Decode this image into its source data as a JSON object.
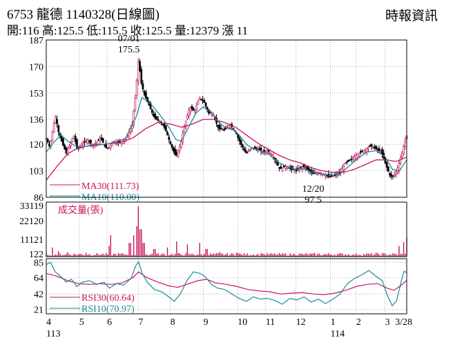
{
  "header": {
    "title": "6753  龍德 1140328(日線圖)",
    "quote": "開:116 高:125.5 低:115.5 收:125.5 量:12379 漲 11",
    "source": "時報資訊"
  },
  "colors": {
    "up": "#c8145a",
    "down": "#000000",
    "ma30": "#c8145a",
    "ma10": "#1a8a9a",
    "rsi30": "#c8145a",
    "rsi10": "#1a8a9a",
    "volume": "#c8145a",
    "grid": "#9a9a9a"
  },
  "chart_data": [
    {
      "type": "candlestick",
      "yticks": [
        187,
        170,
        153,
        136,
        120,
        103,
        86
      ],
      "ylim": [
        86,
        187
      ],
      "xticks": [
        {
          "label": "4",
          "sub": "113",
          "pos": 0.0
        },
        {
          "label": "5",
          "sub": "",
          "pos": 0.0914
        },
        {
          "label": "6",
          "sub": "",
          "pos": 0.1688
        },
        {
          "label": "7",
          "sub": "",
          "pos": 0.2554
        },
        {
          "label": "8",
          "sub": "",
          "pos": 0.344
        },
        {
          "label": "9",
          "sub": "",
          "pos": 0.4358
        },
        {
          "label": "10",
          "sub": "",
          "pos": 0.531
        },
        {
          "label": "11",
          "sub": "",
          "pos": 0.6086
        },
        {
          "label": "12",
          "sub": "",
          "pos": 0.6928
        },
        {
          "label": "1",
          "sub": "114",
          "pos": 0.7886
        },
        {
          "label": "2",
          "sub": "",
          "pos": 0.8598
        },
        {
          "label": "3",
          "sub": "",
          "pos": 0.94
        },
        {
          "label": "3/28",
          "sub": "",
          "pos": 1.0
        }
      ],
      "close_path": [
        [
          0.0,
          124
        ],
        [
          0.01,
          118
        ],
        [
          0.018,
          130
        ],
        [
          0.026,
          138
        ],
        [
          0.034,
          128
        ],
        [
          0.044,
          121
        ],
        [
          0.056,
          114
        ],
        [
          0.066,
          120
        ],
        [
          0.076,
          126
        ],
        [
          0.086,
          117
        ],
        [
          0.1,
          120
        ],
        [
          0.115,
          123
        ],
        [
          0.13,
          119
        ],
        [
          0.15,
          124
        ],
        [
          0.168,
          117
        ],
        [
          0.185,
          122
        ],
        [
          0.205,
          121
        ],
        [
          0.222,
          124
        ],
        [
          0.238,
          132
        ],
        [
          0.248,
          152
        ],
        [
          0.256,
          175
        ],
        [
          0.263,
          160
        ],
        [
          0.272,
          152
        ],
        [
          0.285,
          145
        ],
        [
          0.3,
          137
        ],
        [
          0.315,
          135
        ],
        [
          0.33,
          130
        ],
        [
          0.345,
          120
        ],
        [
          0.36,
          112
        ],
        [
          0.372,
          120
        ],
        [
          0.385,
          133
        ],
        [
          0.398,
          144
        ],
        [
          0.412,
          141
        ],
        [
          0.425,
          150
        ],
        [
          0.438,
          147
        ],
        [
          0.45,
          140
        ],
        [
          0.462,
          140
        ],
        [
          0.478,
          130
        ],
        [
          0.495,
          129
        ],
        [
          0.51,
          133
        ],
        [
          0.525,
          128
        ],
        [
          0.54,
          120
        ],
        [
          0.555,
          114
        ],
        [
          0.57,
          118
        ],
        [
          0.585,
          117
        ],
        [
          0.6,
          115
        ],
        [
          0.615,
          116
        ],
        [
          0.63,
          112
        ],
        [
          0.648,
          104
        ],
        [
          0.665,
          106
        ],
        [
          0.68,
          104
        ],
        [
          0.695,
          103
        ],
        [
          0.71,
          106
        ],
        [
          0.725,
          104
        ],
        [
          0.74,
          101
        ],
        [
          0.755,
          102
        ],
        [
          0.77,
          101
        ],
        [
          0.785,
          99
        ],
        [
          0.8,
          100
        ],
        [
          0.815,
          102
        ],
        [
          0.83,
          108
        ],
        [
          0.845,
          110
        ],
        [
          0.86,
          113
        ],
        [
          0.88,
          116
        ],
        [
          0.9,
          119
        ],
        [
          0.915,
          117
        ],
        [
          0.93,
          115
        ],
        [
          0.945,
          105
        ],
        [
          0.955,
          99
        ],
        [
          0.965,
          100
        ],
        [
          0.975,
          105
        ],
        [
          0.985,
          113
        ],
        [
          0.992,
          119
        ],
        [
          1.0,
          125.5
        ]
      ],
      "ma10_path": [
        [
          0.0,
          115
        ],
        [
          0.02,
          121
        ],
        [
          0.04,
          126
        ],
        [
          0.06,
          122
        ],
        [
          0.08,
          119
        ],
        [
          0.1,
          118
        ],
        [
          0.13,
          120
        ],
        [
          0.16,
          120
        ],
        [
          0.19,
          121
        ],
        [
          0.22,
          124
        ],
        [
          0.25,
          138
        ],
        [
          0.265,
          150
        ],
        [
          0.29,
          146
        ],
        [
          0.315,
          139
        ],
        [
          0.34,
          131
        ],
        [
          0.36,
          123
        ],
        [
          0.375,
          122
        ],
        [
          0.395,
          131
        ],
        [
          0.415,
          140
        ],
        [
          0.435,
          144
        ],
        [
          0.455,
          141
        ],
        [
          0.475,
          135
        ],
        [
          0.495,
          131
        ],
        [
          0.515,
          130
        ],
        [
          0.535,
          126
        ],
        [
          0.555,
          120
        ],
        [
          0.575,
          117
        ],
        [
          0.595,
          116
        ],
        [
          0.615,
          114
        ],
        [
          0.64,
          109
        ],
        [
          0.665,
          106
        ],
        [
          0.69,
          104
        ],
        [
          0.715,
          104
        ],
        [
          0.74,
          102
        ],
        [
          0.765,
          101
        ],
        [
          0.79,
          100
        ],
        [
          0.815,
          101
        ],
        [
          0.84,
          106
        ],
        [
          0.865,
          111
        ],
        [
          0.89,
          115
        ],
        [
          0.915,
          116
        ],
        [
          0.94,
          112
        ],
        [
          0.96,
          104
        ],
        [
          0.98,
          103
        ],
        [
          1.0,
          110
        ]
      ],
      "ma30_path": [
        [
          0.0,
          97
        ],
        [
          0.03,
          106
        ],
        [
          0.06,
          114
        ],
        [
          0.09,
          118
        ],
        [
          0.12,
          119
        ],
        [
          0.16,
          120
        ],
        [
          0.2,
          121
        ],
        [
          0.24,
          124
        ],
        [
          0.275,
          130
        ],
        [
          0.31,
          134
        ],
        [
          0.345,
          133
        ],
        [
          0.375,
          131
        ],
        [
          0.405,
          133
        ],
        [
          0.435,
          136
        ],
        [
          0.465,
          136
        ],
        [
          0.495,
          134
        ],
        [
          0.525,
          131
        ],
        [
          0.555,
          126
        ],
        [
          0.585,
          121
        ],
        [
          0.615,
          117
        ],
        [
          0.645,
          113
        ],
        [
          0.675,
          110
        ],
        [
          0.705,
          108
        ],
        [
          0.735,
          105
        ],
        [
          0.765,
          103
        ],
        [
          0.795,
          102
        ],
        [
          0.825,
          102
        ],
        [
          0.855,
          104
        ],
        [
          0.885,
          107
        ],
        [
          0.915,
          110
        ],
        [
          0.945,
          110
        ],
        [
          0.97,
          109
        ],
        [
          1.0,
          111.73
        ]
      ],
      "legend": [
        {
          "label": "MA30(111.73)",
          "color": "#c8145a"
        },
        {
          "label": "MA10(110.00)",
          "color": "#1a8a9a"
        }
      ],
      "annotations": [
        {
          "date": "07/01",
          "value": "175.5",
          "x": 0.256,
          "y": 175.5
        },
        {
          "date": "12/20",
          "value": "97.5",
          "x": 0.775,
          "y": 97.5
        }
      ]
    },
    {
      "type": "bar",
      "title": "成交量(張)",
      "yticks": [
        33119,
        22120,
        11121,
        122
      ],
      "ylim": [
        0,
        33119
      ],
      "spikes": [
        {
          "x": 0.018,
          "v": 6000
        },
        {
          "x": 0.034,
          "v": 3500
        },
        {
          "x": 0.06,
          "v": 3000
        },
        {
          "x": 0.11,
          "v": 2500
        },
        {
          "x": 0.18,
          "v": 14000
        },
        {
          "x": 0.176,
          "v": 7000
        },
        {
          "x": 0.232,
          "v": 9000
        },
        {
          "x": 0.242,
          "v": 14000
        },
        {
          "x": 0.25,
          "v": 20000
        },
        {
          "x": 0.256,
          "v": 33000
        },
        {
          "x": 0.262,
          "v": 18000
        },
        {
          "x": 0.27,
          "v": 9000
        },
        {
          "x": 0.3,
          "v": 5000
        },
        {
          "x": 0.335,
          "v": 6000
        },
        {
          "x": 0.36,
          "v": 10000
        },
        {
          "x": 0.39,
          "v": 8000
        },
        {
          "x": 0.425,
          "v": 9000
        },
        {
          "x": 0.445,
          "v": 5000
        },
        {
          "x": 0.48,
          "v": 3000
        },
        {
          "x": 0.53,
          "v": 2500
        },
        {
          "x": 0.6,
          "v": 2000
        },
        {
          "x": 0.69,
          "v": 1500
        },
        {
          "x": 0.85,
          "v": 1500
        },
        {
          "x": 0.915,
          "v": 2500
        },
        {
          "x": 0.98,
          "v": 7000
        },
        {
          "x": 0.992,
          "v": 9500
        },
        {
          "x": 1.0,
          "v": 12379
        }
      ]
    },
    {
      "type": "line",
      "yticks": [
        85,
        64,
        42,
        21
      ],
      "ylim": [
        15,
        90
      ],
      "series": [
        {
          "name": "RSI30(60.64)",
          "color": "#c8145a",
          "points": [
            [
              0.0,
              70
            ],
            [
              0.03,
              66
            ],
            [
              0.06,
              60
            ],
            [
              0.09,
              56
            ],
            [
              0.12,
              55
            ],
            [
              0.15,
              56
            ],
            [
              0.18,
              55
            ],
            [
              0.21,
              57
            ],
            [
              0.24,
              64
            ],
            [
              0.256,
              72
            ],
            [
              0.28,
              64
            ],
            [
              0.31,
              58
            ],
            [
              0.34,
              53
            ],
            [
              0.365,
              51
            ],
            [
              0.39,
              55
            ],
            [
              0.42,
              60
            ],
            [
              0.445,
              62
            ],
            [
              0.47,
              57
            ],
            [
              0.5,
              55
            ],
            [
              0.53,
              52
            ],
            [
              0.56,
              48
            ],
            [
              0.59,
              46
            ],
            [
              0.62,
              45
            ],
            [
              0.65,
              42
            ],
            [
              0.68,
              43
            ],
            [
              0.71,
              44
            ],
            [
              0.74,
              42
            ],
            [
              0.77,
              41
            ],
            [
              0.8,
              43
            ],
            [
              0.83,
              47
            ],
            [
              0.86,
              52
            ],
            [
              0.89,
              55
            ],
            [
              0.92,
              56
            ],
            [
              0.945,
              50
            ],
            [
              0.965,
              47
            ],
            [
              0.985,
              54
            ],
            [
              1.0,
              60.64
            ]
          ]
        },
        {
          "name": "RSI10(70.97)",
          "color": "#1a8a9a",
          "points": [
            [
              0.0,
              82
            ],
            [
              0.012,
              85
            ],
            [
              0.025,
              72
            ],
            [
              0.04,
              66
            ],
            [
              0.055,
              58
            ],
            [
              0.07,
              62
            ],
            [
              0.085,
              52
            ],
            [
              0.1,
              58
            ],
            [
              0.12,
              60
            ],
            [
              0.14,
              55
            ],
            [
              0.16,
              58
            ],
            [
              0.175,
              50
            ],
            [
              0.195,
              56
            ],
            [
              0.215,
              54
            ],
            [
              0.235,
              63
            ],
            [
              0.248,
              80
            ],
            [
              0.256,
              86
            ],
            [
              0.266,
              70
            ],
            [
              0.28,
              58
            ],
            [
              0.3,
              48
            ],
            [
              0.32,
              45
            ],
            [
              0.34,
              38
            ],
            [
              0.355,
              32
            ],
            [
              0.372,
              42
            ],
            [
              0.39,
              60
            ],
            [
              0.408,
              72
            ],
            [
              0.425,
              70
            ],
            [
              0.44,
              66
            ],
            [
              0.458,
              55
            ],
            [
              0.475,
              50
            ],
            [
              0.495,
              48
            ],
            [
              0.515,
              42
            ],
            [
              0.535,
              36
            ],
            [
              0.555,
              32
            ],
            [
              0.575,
              38
            ],
            [
              0.595,
              35
            ],
            [
              0.615,
              36
            ],
            [
              0.635,
              33
            ],
            [
              0.655,
              28
            ],
            [
              0.675,
              36
            ],
            [
              0.695,
              34
            ],
            [
              0.715,
              38
            ],
            [
              0.735,
              31
            ],
            [
              0.755,
              35
            ],
            [
              0.775,
              29
            ],
            [
              0.795,
              35
            ],
            [
              0.815,
              42
            ],
            [
              0.835,
              56
            ],
            [
              0.855,
              63
            ],
            [
              0.875,
              68
            ],
            [
              0.895,
              74
            ],
            [
              0.915,
              66
            ],
            [
              0.932,
              60
            ],
            [
              0.948,
              38
            ],
            [
              0.96,
              26
            ],
            [
              0.972,
              33
            ],
            [
              0.985,
              60
            ],
            [
              0.993,
              73
            ],
            [
              1.0,
              70.97
            ]
          ]
        }
      ]
    }
  ]
}
